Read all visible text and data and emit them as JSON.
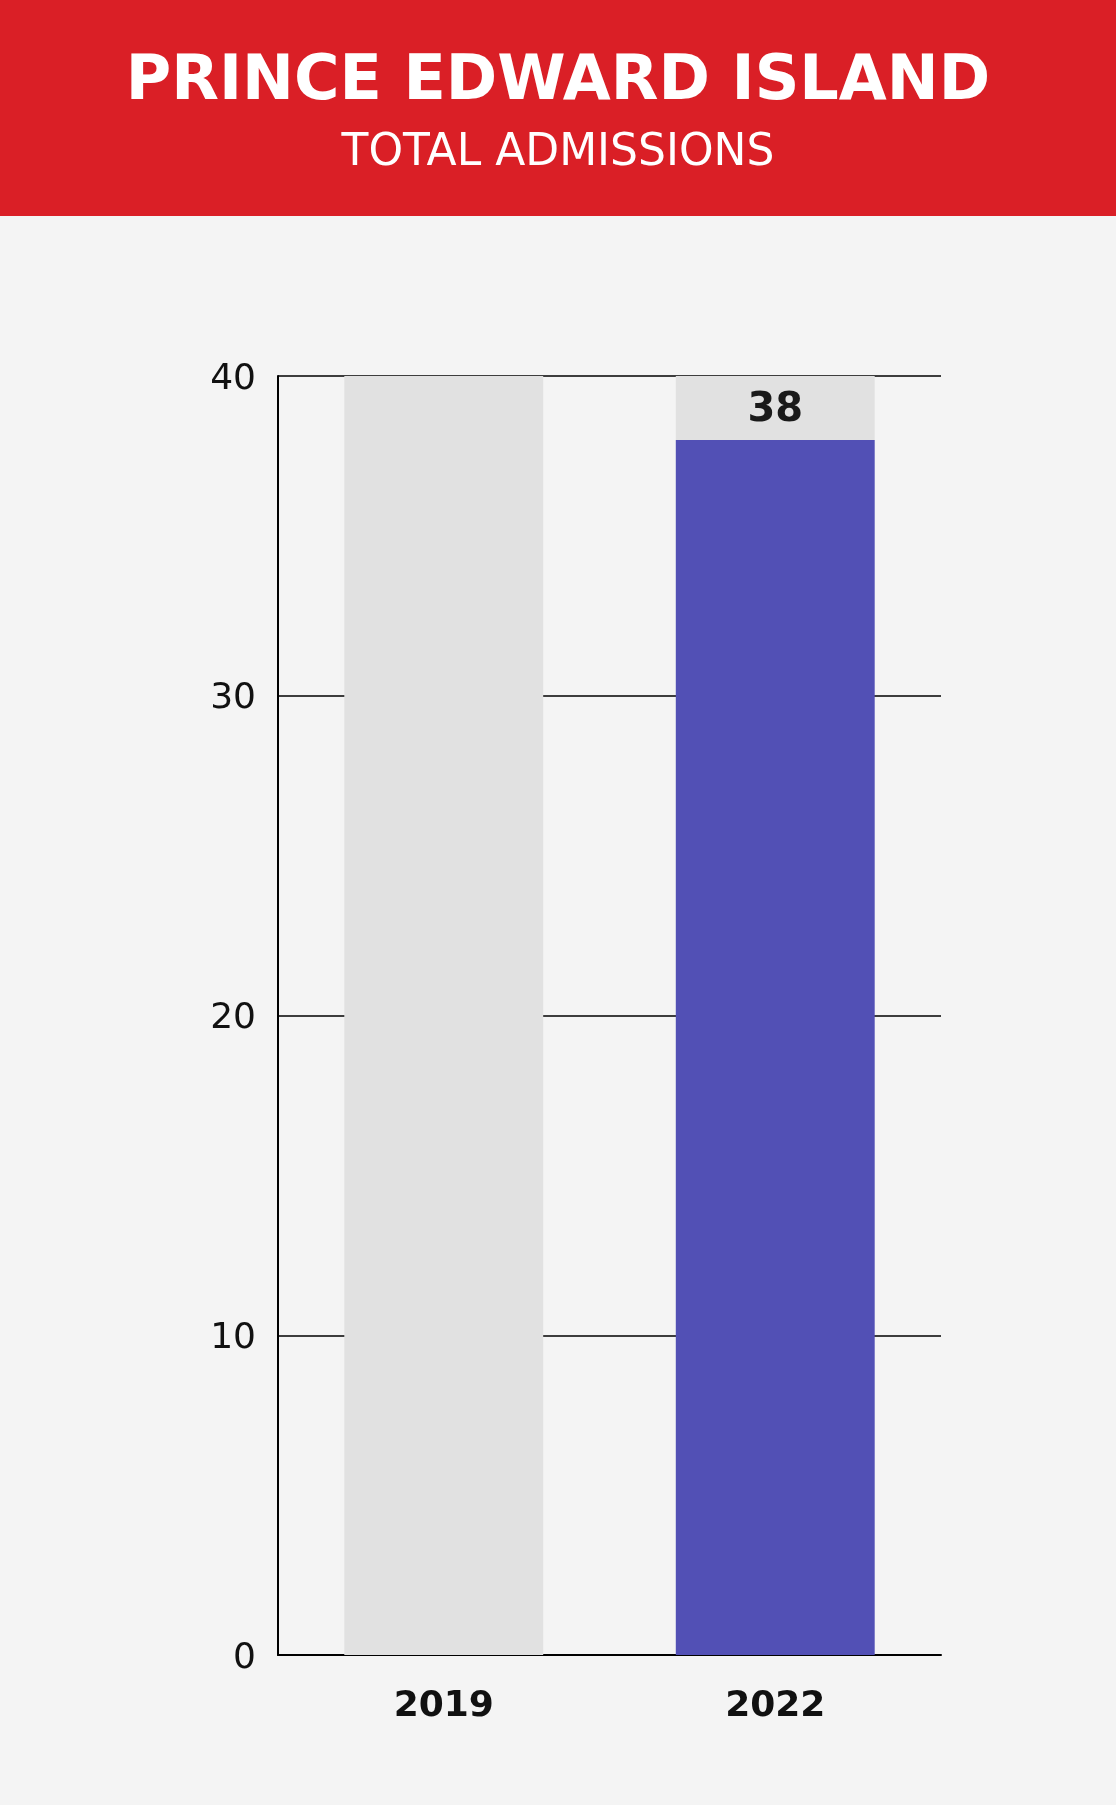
{
  "chart_data": {
    "type": "bar",
    "title": "PRINCE EDWARD ISLAND",
    "subtitle": "TOTAL ADMISSIONS",
    "categories": [
      "2019",
      "2022"
    ],
    "stacked": true,
    "series": [
      {
        "color": "#5250b5",
        "values": [
          null,
          38
        ],
        "value_labels": [
          null,
          "38"
        ]
      },
      {
        "color": "#e1e1e1",
        "values": [
          40,
          2
        ]
      }
    ],
    "ylim": [
      0,
      40
    ],
    "yticks": [
      0,
      10,
      20,
      30,
      40
    ],
    "grid": "y"
  }
}
